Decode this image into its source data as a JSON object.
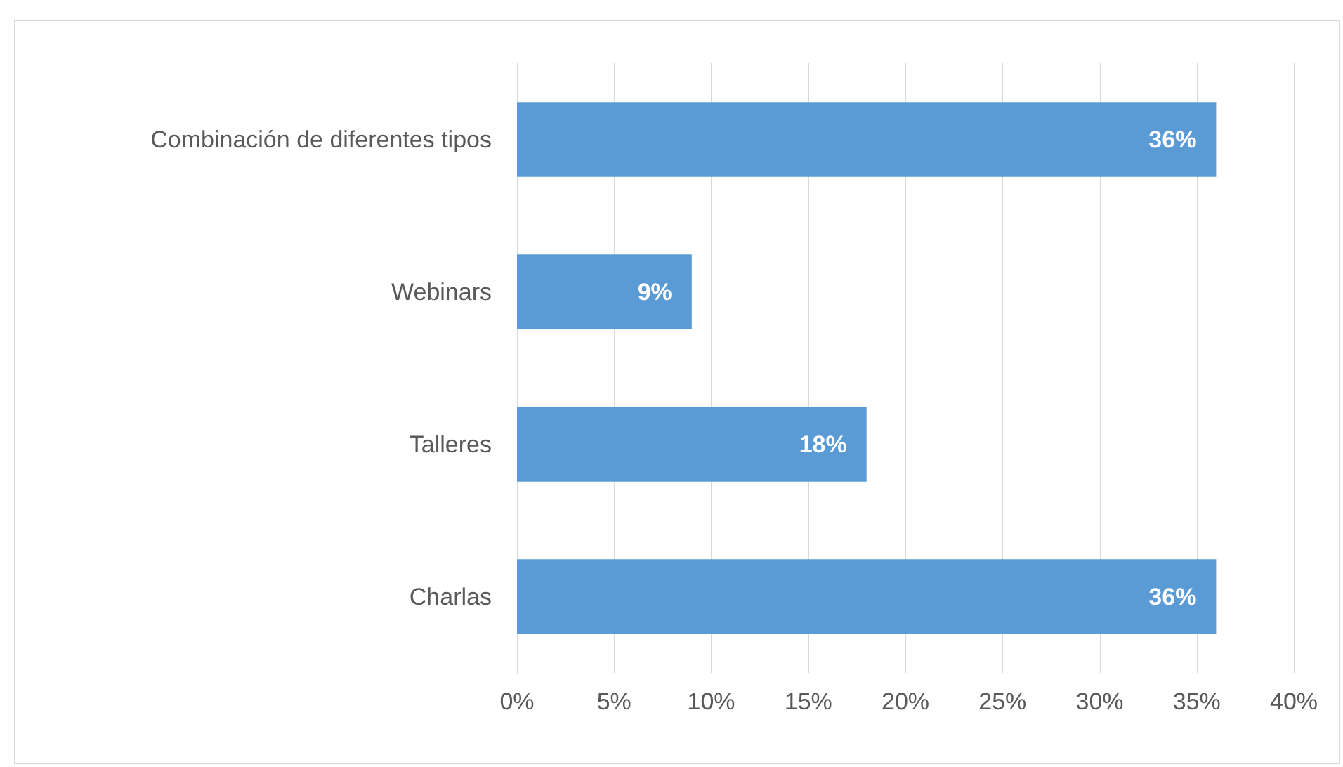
{
  "chart_data": {
    "type": "bar",
    "orientation": "horizontal",
    "categories": [
      "Combinación de diferentes tipos",
      "Webinars",
      "Talleres",
      "Charlas"
    ],
    "values": [
      36,
      9,
      18,
      36
    ],
    "color": "#5b9bd5",
    "value_labels": [
      "36%",
      "9%",
      "18%",
      "36%"
    ],
    "xlim": [
      0,
      40
    ],
    "xticks": [
      {
        "value": 0,
        "label": "0%"
      },
      {
        "value": 5,
        "label": "5%"
      },
      {
        "value": 10,
        "label": "10%"
      },
      {
        "value": 15,
        "label": "15%"
      },
      {
        "value": 20,
        "label": "20%"
      },
      {
        "value": 25,
        "label": "25%"
      },
      {
        "value": 30,
        "label": "30%"
      },
      {
        "value": 35,
        "label": "35%"
      },
      {
        "value": 40,
        "label": "40%"
      }
    ],
    "grid": "x"
  }
}
